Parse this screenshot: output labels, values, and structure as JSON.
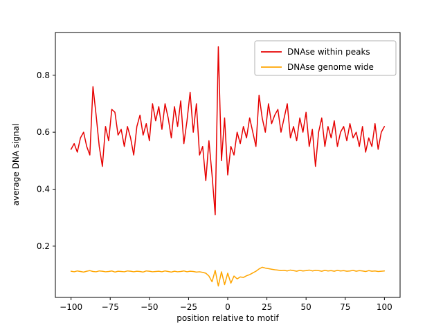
{
  "figure": {
    "background": "#ffffff",
    "axes_edge_color": "#000000"
  },
  "chart_data": {
    "type": "line",
    "title": "",
    "xlabel": "position relative to motif",
    "ylabel": "average DNA signal",
    "xlim": [
      -110,
      110
    ],
    "ylim": [
      0.02,
      0.95
    ],
    "grid": false,
    "legend_position": "upper right",
    "xticks": [
      {
        "value": -100,
        "label": "−100"
      },
      {
        "value": -75,
        "label": "−75"
      },
      {
        "value": -50,
        "label": "−50"
      },
      {
        "value": -25,
        "label": "−25"
      },
      {
        "value": 0,
        "label": "0"
      },
      {
        "value": 25,
        "label": "25"
      },
      {
        "value": 50,
        "label": "50"
      },
      {
        "value": 75,
        "label": "75"
      },
      {
        "value": 100,
        "label": "100"
      }
    ],
    "yticks": [
      {
        "value": 0.2,
        "label": "0.2"
      },
      {
        "value": 0.4,
        "label": "0.4"
      },
      {
        "value": 0.6,
        "label": "0.6"
      },
      {
        "value": 0.8,
        "label": "0.8"
      }
    ],
    "x": [
      -100,
      -98,
      -96,
      -94,
      -92,
      -90,
      -88,
      -86,
      -84,
      -82,
      -80,
      -78,
      -76,
      -74,
      -72,
      -70,
      -68,
      -66,
      -64,
      -62,
      -60,
      -58,
      -56,
      -54,
      -52,
      -50,
      -48,
      -46,
      -44,
      -42,
      -40,
      -38,
      -36,
      -34,
      -32,
      -30,
      -28,
      -26,
      -24,
      -22,
      -20,
      -18,
      -16,
      -14,
      -12,
      -10,
      -8,
      -6,
      -4,
      -2,
      0,
      2,
      4,
      6,
      8,
      10,
      12,
      14,
      16,
      18,
      20,
      22,
      24,
      26,
      28,
      30,
      32,
      34,
      36,
      38,
      40,
      42,
      44,
      46,
      48,
      50,
      52,
      54,
      56,
      58,
      60,
      62,
      64,
      66,
      68,
      70,
      72,
      74,
      76,
      78,
      80,
      82,
      84,
      86,
      88,
      90,
      92,
      94,
      96,
      98,
      100
    ],
    "series": [
      {
        "name": "DNAse within peaks",
        "color": "#e60000",
        "values": [
          0.54,
          0.56,
          0.53,
          0.58,
          0.6,
          0.55,
          0.52,
          0.76,
          0.66,
          0.55,
          0.48,
          0.62,
          0.57,
          0.68,
          0.67,
          0.59,
          0.61,
          0.55,
          0.62,
          0.58,
          0.52,
          0.62,
          0.66,
          0.59,
          0.63,
          0.57,
          0.7,
          0.64,
          0.69,
          0.61,
          0.7,
          0.65,
          0.58,
          0.69,
          0.62,
          0.71,
          0.56,
          0.64,
          0.74,
          0.6,
          0.7,
          0.52,
          0.55,
          0.43,
          0.57,
          0.45,
          0.31,
          0.9,
          0.5,
          0.65,
          0.45,
          0.55,
          0.52,
          0.6,
          0.56,
          0.62,
          0.58,
          0.65,
          0.6,
          0.55,
          0.73,
          0.65,
          0.6,
          0.7,
          0.63,
          0.66,
          0.68,
          0.6,
          0.65,
          0.7,
          0.58,
          0.62,
          0.57,
          0.65,
          0.6,
          0.67,
          0.55,
          0.61,
          0.48,
          0.6,
          0.65,
          0.55,
          0.62,
          0.58,
          0.64,
          0.55,
          0.6,
          0.62,
          0.57,
          0.63,
          0.58,
          0.6,
          0.55,
          0.62,
          0.53,
          0.58,
          0.55,
          0.63,
          0.54,
          0.6,
          0.62
        ]
      },
      {
        "name": "DNAse genome wide",
        "color": "#ffa500",
        "values": [
          0.112,
          0.11,
          0.113,
          0.111,
          0.109,
          0.112,
          0.114,
          0.111,
          0.11,
          0.113,
          0.112,
          0.11,
          0.111,
          0.113,
          0.109,
          0.112,
          0.111,
          0.11,
          0.113,
          0.112,
          0.11,
          0.112,
          0.111,
          0.109,
          0.113,
          0.112,
          0.11,
          0.111,
          0.112,
          0.11,
          0.113,
          0.111,
          0.109,
          0.112,
          0.11,
          0.111,
          0.113,
          0.11,
          0.112,
          0.111,
          0.109,
          0.11,
          0.108,
          0.105,
          0.095,
          0.075,
          0.115,
          0.06,
          0.11,
          0.065,
          0.105,
          0.07,
          0.095,
          0.085,
          0.092,
          0.09,
          0.096,
          0.1,
          0.106,
          0.112,
          0.12,
          0.126,
          0.123,
          0.121,
          0.119,
          0.117,
          0.116,
          0.114,
          0.115,
          0.113,
          0.116,
          0.114,
          0.112,
          0.115,
          0.113,
          0.114,
          0.116,
          0.113,
          0.115,
          0.114,
          0.112,
          0.115,
          0.113,
          0.114,
          0.112,
          0.115,
          0.113,
          0.114,
          0.112,
          0.113,
          0.115,
          0.112,
          0.114,
          0.113,
          0.111,
          0.114,
          0.112,
          0.113,
          0.111,
          0.112,
          0.113
        ]
      }
    ]
  }
}
